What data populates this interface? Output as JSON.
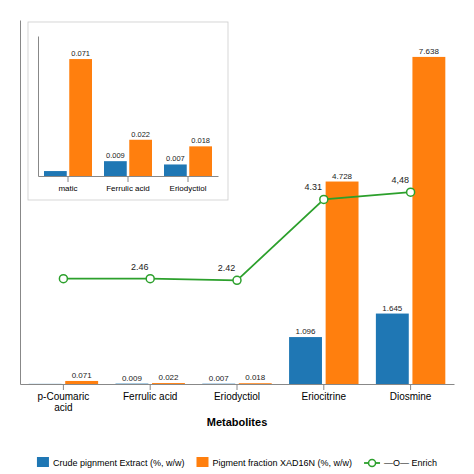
{
  "chart_data": [
    {
      "type": "bar",
      "xlabel": "Metabolites",
      "categories": [
        "p-Coumaric\nacid",
        "Ferrulic acid",
        "Eriodyctiol",
        "Eriocitrine",
        "Diosmine"
      ],
      "series": [
        {
          "name": "Crude pignment Extract (%, w/w)",
          "type": "bar",
          "values": [
            0.003,
            0.009,
            0.007,
            1.096,
            1.645
          ],
          "value_labels": [
            null,
            "0.009",
            "0.007",
            "1.096",
            "1.645"
          ]
        },
        {
          "name": "Pigment fraction XAD16N (%, w/w)",
          "type": "bar",
          "values": [
            0.071,
            0.022,
            0.018,
            4.728,
            7.638
          ],
          "value_labels": [
            "0.071",
            "0.022",
            "0.018",
            "4.728",
            "7.638"
          ]
        },
        {
          "name": "—O— Enrich",
          "type": "line",
          "marker": "circle",
          "values": [
            2.46,
            2.46,
            2.42,
            4.31,
            4.48
          ],
          "value_labels": [
            null,
            "2.46",
            "2.42",
            "4.31",
            "4,48"
          ]
        }
      ],
      "ylim": [
        0,
        8.5
      ],
      "tick_labels": "x",
      "data_labels": true,
      "legend": "bottom"
    },
    {
      "type": "bar",
      "categories": [
        "matic",
        "Ferrulic acid",
        "Eriodyctiol"
      ],
      "series": [
        {
          "values": [
            0.003,
            0.009,
            0.007
          ],
          "value_labels": [
            null,
            "0.009",
            "0.007"
          ]
        },
        {
          "values": [
            0.071,
            0.022,
            0.018
          ],
          "value_labels": [
            "0.071",
            "0.022",
            "0.018"
          ]
        }
      ],
      "ylim": [
        0,
        0.085
      ],
      "tick_labels": "x",
      "data_labels": true
    }
  ]
}
